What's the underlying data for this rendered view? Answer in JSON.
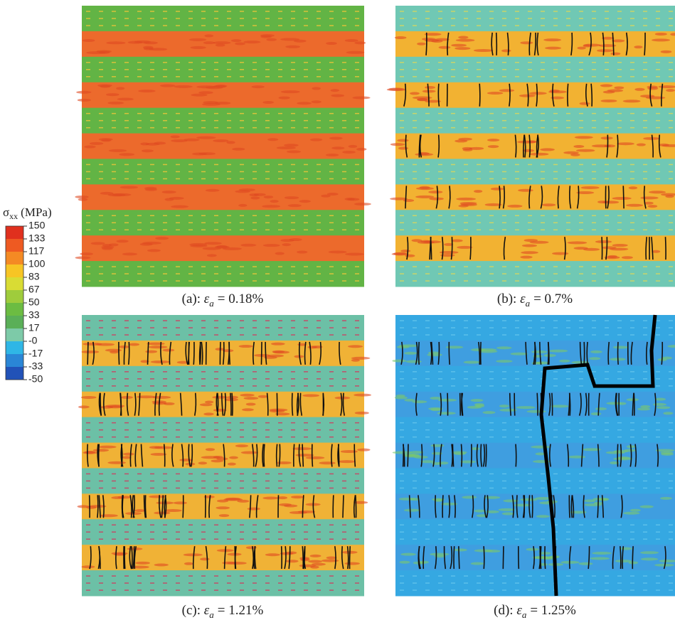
{
  "legend": {
    "symbol": "σ",
    "subscript": "xx",
    "unit": "(MPa)",
    "ticks": [
      "150",
      "133",
      "117",
      "100",
      "83",
      "67",
      "50",
      "33",
      "17",
      "-0",
      "-17",
      "-33",
      "-50"
    ]
  },
  "panels": [
    {
      "label": "(a):",
      "symbol": "ε",
      "subscript": "a",
      "value": "= 0.18%"
    },
    {
      "label": "(b):",
      "symbol": "ε",
      "subscript": "a",
      "value": "= 0.7%"
    },
    {
      "label": "(c):",
      "symbol": "ε",
      "subscript": "a",
      "value": "= 1.21%"
    },
    {
      "label": "(d):",
      "symbol": "ε",
      "subscript": "a",
      "value": "= 1.25%"
    }
  ]
}
